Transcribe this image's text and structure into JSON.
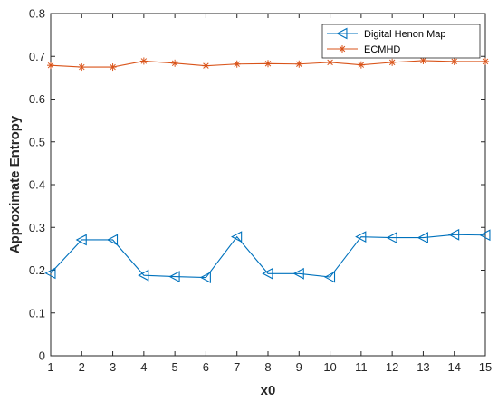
{
  "chart_data": {
    "type": "line",
    "xlabel": "x0",
    "ylabel": "Approximate Entropy",
    "xlim": [
      1,
      15
    ],
    "ylim": [
      0,
      0.8
    ],
    "x": [
      1,
      2,
      3,
      4,
      5,
      6,
      7,
      8,
      9,
      10,
      11,
      12,
      13,
      14,
      15
    ],
    "xticks": [
      "1",
      "2",
      "3",
      "4",
      "5",
      "6",
      "7",
      "8",
      "9",
      "10",
      "11",
      "12",
      "13",
      "14",
      "15"
    ],
    "yticks": [
      "0",
      "0.1",
      "0.2",
      "0.3",
      "0.4",
      "0.5",
      "0.6",
      "0.7",
      "0.8"
    ],
    "grid": false,
    "legend_position": "top-right",
    "series": [
      {
        "name": "Digital Henon Map",
        "color": "#0072BD",
        "marker": "left-triangle",
        "values": [
          0.193,
          0.271,
          0.271,
          0.188,
          0.185,
          0.183,
          0.278,
          0.192,
          0.192,
          0.184,
          0.278,
          0.276,
          0.276,
          0.283,
          0.282
        ]
      },
      {
        "name": "ECMHD",
        "color": "#D95319",
        "marker": "asterisk",
        "values": [
          0.679,
          0.675,
          0.675,
          0.689,
          0.684,
          0.678,
          0.682,
          0.683,
          0.682,
          0.686,
          0.68,
          0.686,
          0.69,
          0.688,
          0.688
        ]
      }
    ]
  }
}
